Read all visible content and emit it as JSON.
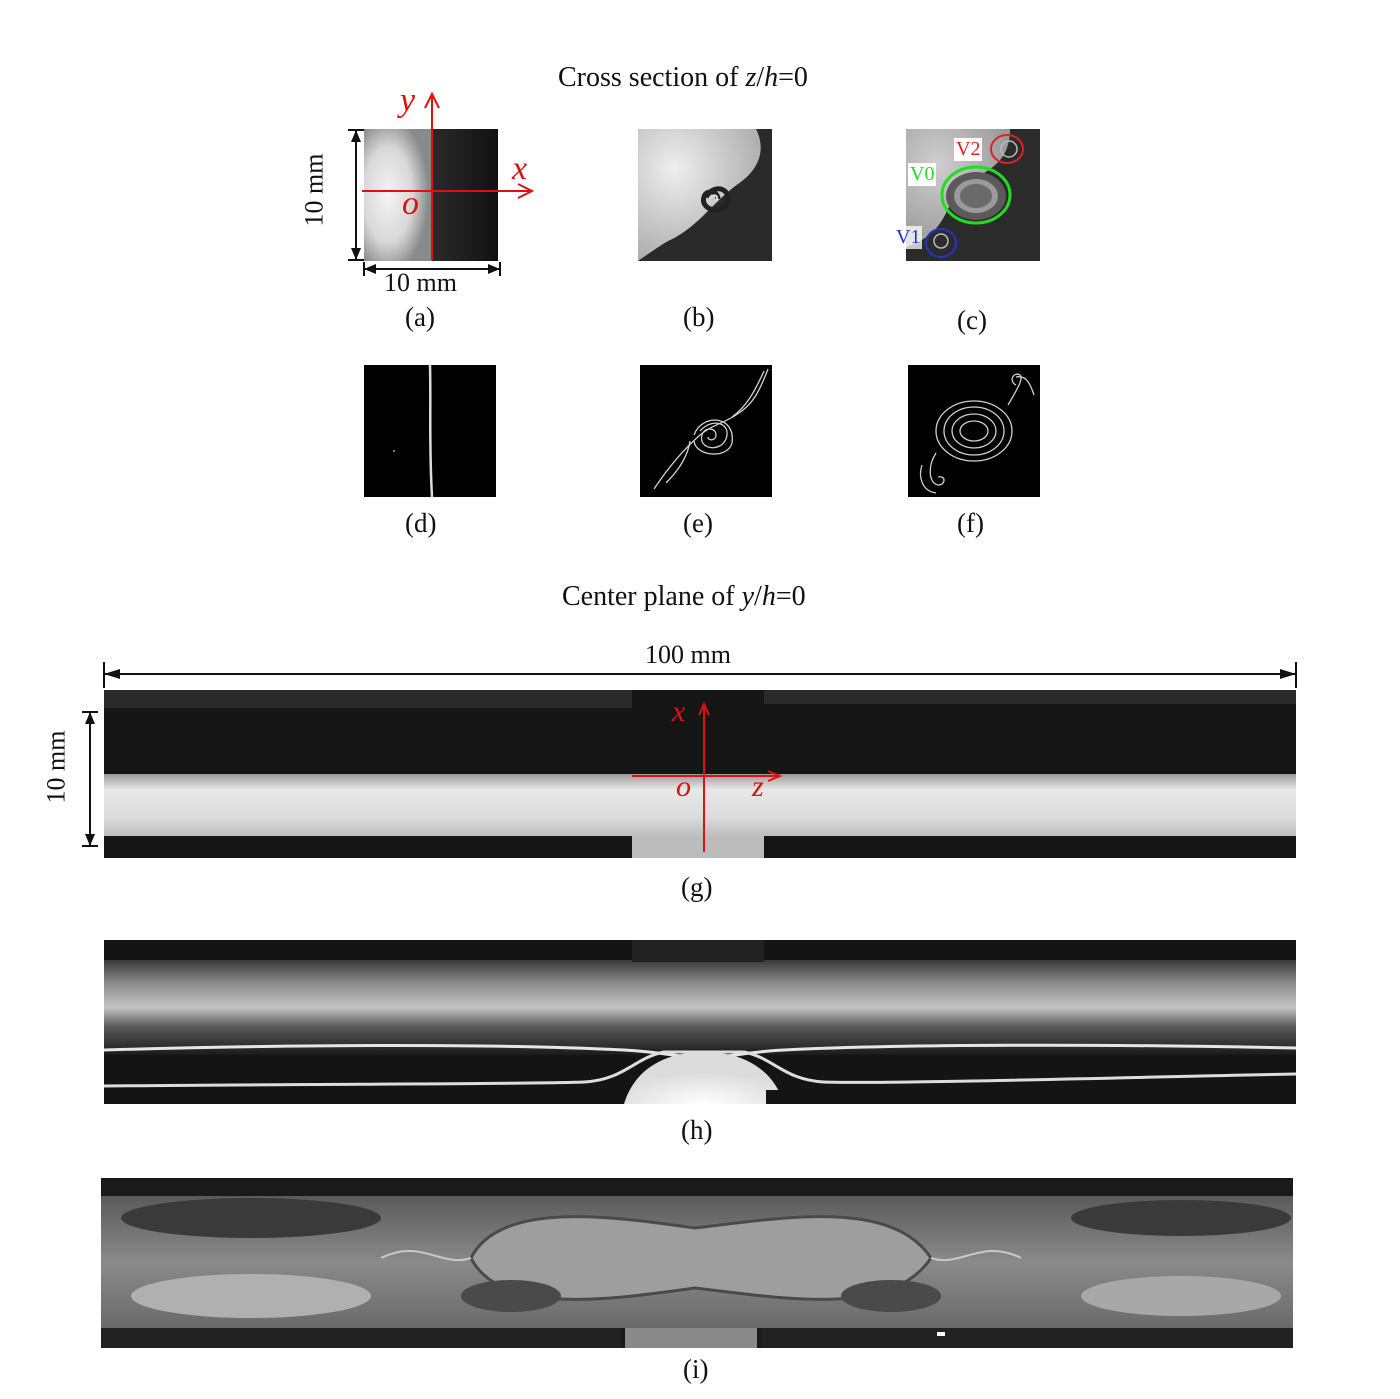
{
  "section_cross": {
    "title_prefix": "Cross section of ",
    "title_var": "z",
    "title_slash": "/",
    "title_var2": "h",
    "title_suffix": "=0"
  },
  "section_center": {
    "title_prefix": "Center plane of ",
    "title_var": "y",
    "title_slash": "/",
    "title_var2": "h",
    "title_suffix": "=0"
  },
  "panels": {
    "a": {
      "caption": "(a)",
      "dim_vertical": "10 mm",
      "dim_horizontal": "10 mm",
      "axis_y": "y",
      "axis_x": "x",
      "origin": "o"
    },
    "b": {
      "caption": "(b)"
    },
    "c": {
      "caption": "(c)",
      "labels": [
        "V0",
        "V1",
        "V2"
      ]
    },
    "d": {
      "caption": "(d)"
    },
    "e": {
      "caption": "(e)"
    },
    "f": {
      "caption": "(f)"
    },
    "g": {
      "caption": "(g)",
      "dim_horizontal": "100 mm",
      "dim_vertical": "10 mm",
      "axis_x": "x",
      "axis_z": "z",
      "origin": "o"
    },
    "h": {
      "caption": "(h)"
    },
    "i": {
      "caption": "(i)"
    }
  },
  "colors": {
    "axis_red": "#e01010",
    "v0_green": "#22dd22",
    "v1_blue": "#2233cc",
    "v2_red": "#dd2222"
  }
}
